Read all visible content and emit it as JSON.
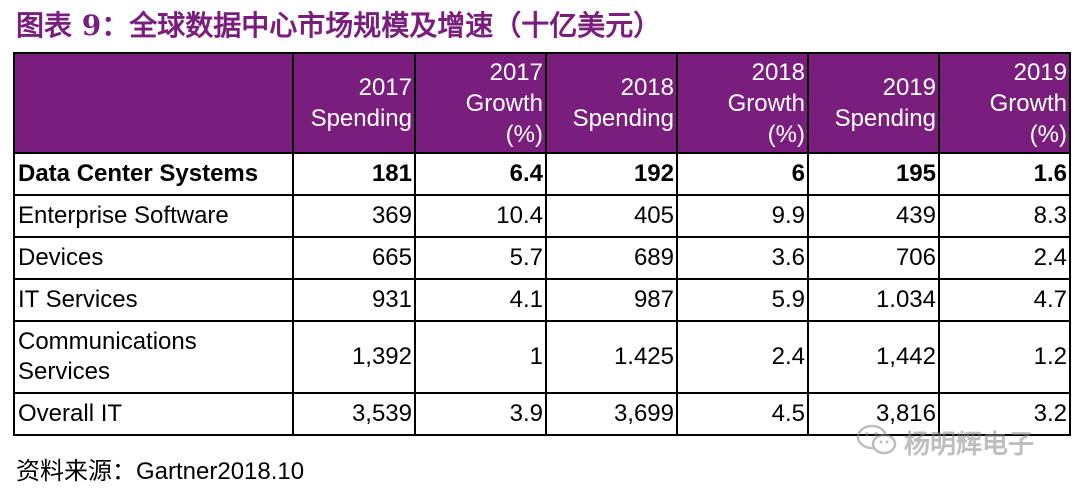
{
  "title": "图表 9：全球数据中心市场规模及增速（十亿美元）",
  "table": {
    "headers": [
      [
        ""
      ],
      [
        "2017",
        "Spending"
      ],
      [
        "2017",
        "Growth",
        "(%)"
      ],
      [
        "2018",
        "Spending"
      ],
      [
        "2018",
        "Growth",
        "(%)"
      ],
      [
        "2019",
        "Spending"
      ],
      [
        "2019",
        "Growth",
        "(%)"
      ]
    ],
    "rows": [
      [
        "Data Center Systems",
        "181",
        "6.4",
        "192",
        "6",
        "195",
        "1.6"
      ],
      [
        "Enterprise Software",
        "369",
        "10.4",
        "405",
        "9.9",
        "439",
        "8.3"
      ],
      [
        "Devices",
        "665",
        "5.7",
        "689",
        "3.6",
        "706",
        "2.4"
      ],
      [
        "IT Services",
        "931",
        "4.1",
        "987",
        "5.9",
        "1.034",
        "4.7"
      ],
      [
        "Communications Services",
        "1,392",
        "1",
        "1.425",
        "2.4",
        "1,442",
        "1.2"
      ],
      [
        "Overall IT",
        "3,539",
        "3.9",
        "3,699",
        "4.5",
        "3,816",
        "3.2"
      ]
    ],
    "communications_label_lines": [
      "Communications",
      "Services"
    ]
  },
  "source": {
    "label": "资料来源：",
    "text": "Gartner2018.10"
  },
  "watermark": {
    "text": "杨明辉电子",
    "icon": "wechat-icon"
  },
  "colors": {
    "accent": "#7a1e7e",
    "header_text": "#ffffff"
  }
}
